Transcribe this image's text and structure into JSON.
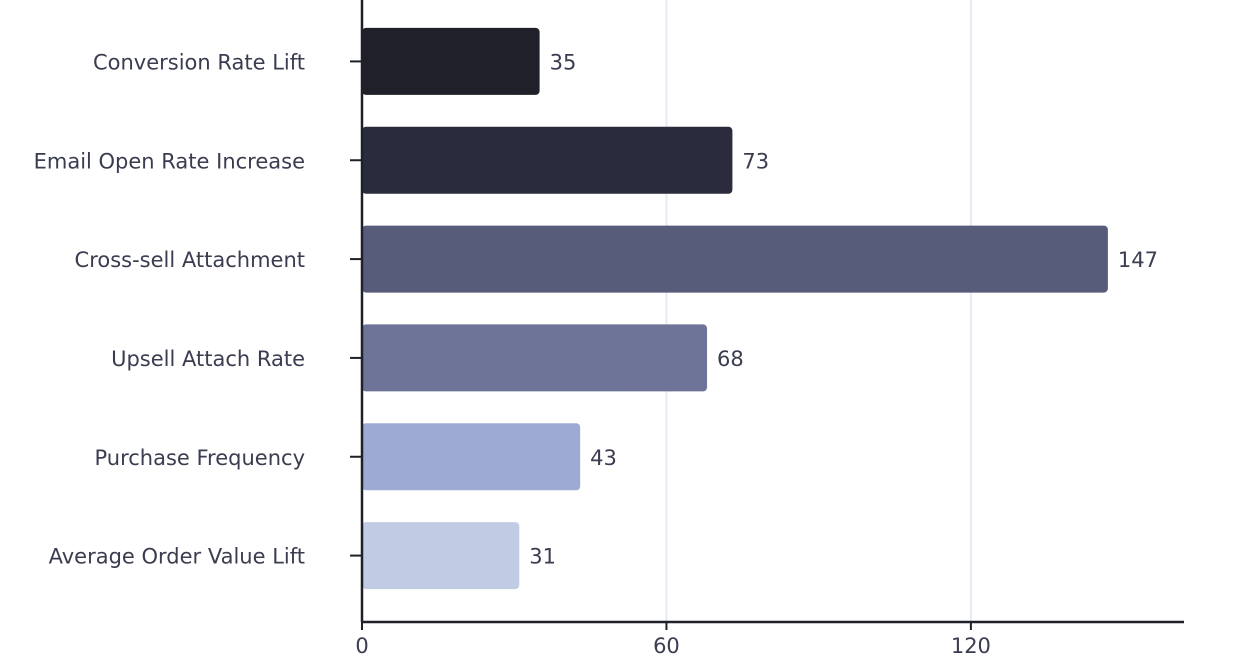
{
  "chart_data": {
    "type": "bar",
    "orientation": "horizontal",
    "categories": [
      "Conversion Rate Lift",
      "Email Open Rate Increase",
      "Cross-sell Attachment",
      "Upsell Attach Rate",
      "Purchase Frequency",
      "Average Order Value Lift"
    ],
    "values": [
      35,
      73,
      147,
      68,
      43,
      31
    ],
    "colors": [
      "#1f2029",
      "#2a2c3d",
      "#585c7b",
      "#6e7498",
      "#9dabd3",
      "#c2cbe4"
    ],
    "xlim": [
      0,
      162
    ],
    "xticks": [
      0,
      60,
      120
    ],
    "grid": true
  }
}
